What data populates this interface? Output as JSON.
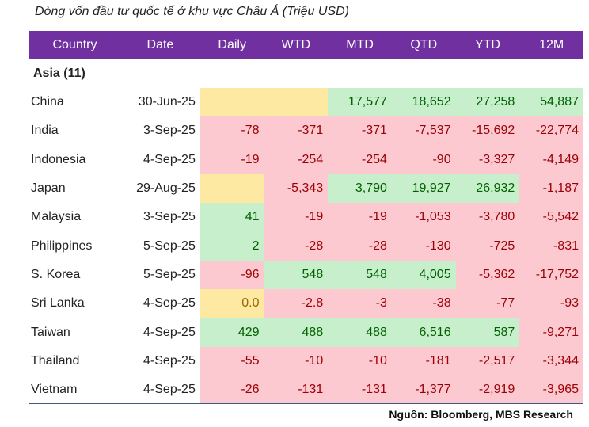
{
  "title": "Dòng vốn đầu tư quốc tế ở khu vực Châu Á (Triệu USD)",
  "source": "Nguồn: Bloomberg, MBS Research",
  "colors": {
    "header_bg": "#7030a0",
    "negative_bg": "#fbc9cf",
    "positive_bg": "#c7efcc",
    "neutral_bg": "#fde9a2"
  },
  "chart_data": {
    "type": "table",
    "columns": [
      "Country",
      "Date",
      "Daily",
      "WTD",
      "MTD",
      "QTD",
      "YTD",
      "12M"
    ],
    "group": "Asia  (11)",
    "rows": [
      {
        "country": "China",
        "date": "30-Jun-25",
        "values": [
          "",
          "",
          "17,577",
          "18,652",
          "27,258",
          "54,887"
        ]
      },
      {
        "country": "India",
        "date": "3-Sep-25",
        "values": [
          "-78",
          "-371",
          "-371",
          "-7,537",
          "-15,692",
          "-22,774"
        ]
      },
      {
        "country": "Indonesia",
        "date": "4-Sep-25",
        "values": [
          "-19",
          "-254",
          "-254",
          "-90",
          "-3,327",
          "-4,149"
        ]
      },
      {
        "country": "Japan",
        "date": "29-Aug-25",
        "values": [
          "",
          "-5,343",
          "3,790",
          "19,927",
          "26,932",
          "-1,187"
        ]
      },
      {
        "country": "Malaysia",
        "date": "3-Sep-25",
        "values": [
          "41",
          "-19",
          "-19",
          "-1,053",
          "-3,780",
          "-5,542"
        ]
      },
      {
        "country": "Philippines",
        "date": "5-Sep-25",
        "values": [
          "2",
          "-28",
          "-28",
          "-130",
          "-725",
          "-831"
        ]
      },
      {
        "country": "S. Korea",
        "date": "5-Sep-25",
        "values": [
          "-96",
          "548",
          "548",
          "4,005",
          "-5,362",
          "-17,752"
        ]
      },
      {
        "country": "Sri Lanka",
        "date": "4-Sep-25",
        "values": [
          "0.0",
          "-2.8",
          "-3",
          "-38",
          "-77",
          "-93"
        ]
      },
      {
        "country": "Taiwan",
        "date": "4-Sep-25",
        "values": [
          "429",
          "488",
          "488",
          "6,516",
          "587",
          "-9,271"
        ]
      },
      {
        "country": "Thailand",
        "date": "4-Sep-25",
        "values": [
          "-55",
          "-10",
          "-10",
          "-181",
          "-2,517",
          "-3,344"
        ]
      },
      {
        "country": "Vietnam",
        "date": "4-Sep-25",
        "values": [
          "-26",
          "-131",
          "-131",
          "-1,377",
          "-2,919",
          "-3,965"
        ]
      }
    ]
  }
}
